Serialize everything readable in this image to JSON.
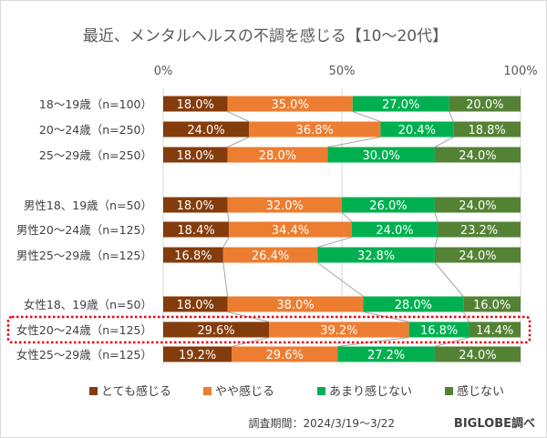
{
  "chart_data": {
    "type": "bar",
    "stacked": true,
    "orientation": "horizontal",
    "title": "最近、メンタルヘルスの不調を感じる【10～20代】",
    "xlim": [
      0,
      100
    ],
    "x_ticks": [
      "0%",
      "50%",
      "100%"
    ],
    "grid": true,
    "legend_position": "bottom",
    "categories": [
      "18～19歳（n=100）",
      "20～24歳（n=250）",
      "25～29歳（n=250）",
      "男性18、19歳（n=50）",
      "男性20～24歳（n=125）",
      "男性25～29歳（n=125）",
      "女性18、19歳（n=50）",
      "女性20～24歳（n=125）",
      "女性25～29歳（n=125）"
    ],
    "groups": [
      [
        0,
        1,
        2
      ],
      [
        3,
        4,
        5
      ],
      [
        6,
        7,
        8
      ]
    ],
    "highlighted_category": 7,
    "series": [
      {
        "name": "とても感じる",
        "color": "#843c0c",
        "values": [
          18.0,
          24.0,
          18.0,
          18.0,
          18.4,
          16.8,
          18.0,
          29.6,
          19.2
        ]
      },
      {
        "name": "やや感じる",
        "color": "#ed7d31",
        "values": [
          35.0,
          36.8,
          28.0,
          32.0,
          34.4,
          26.4,
          38.0,
          39.2,
          29.6
        ]
      },
      {
        "name": "あまり感じない",
        "color": "#00b050",
        "values": [
          27.0,
          20.4,
          30.0,
          26.0,
          24.0,
          32.8,
          28.0,
          16.8,
          27.2
        ]
      },
      {
        "name": "感じない",
        "color": "#548235",
        "values": [
          20.0,
          18.8,
          24.0,
          24.0,
          23.2,
          24.0,
          16.0,
          14.4,
          24.0
        ]
      }
    ]
  },
  "footer": {
    "survey_period": "調査期間：2024/3/19～3/22",
    "brand": "BIGLOBE調べ"
  },
  "highlight_color": "#e60012"
}
